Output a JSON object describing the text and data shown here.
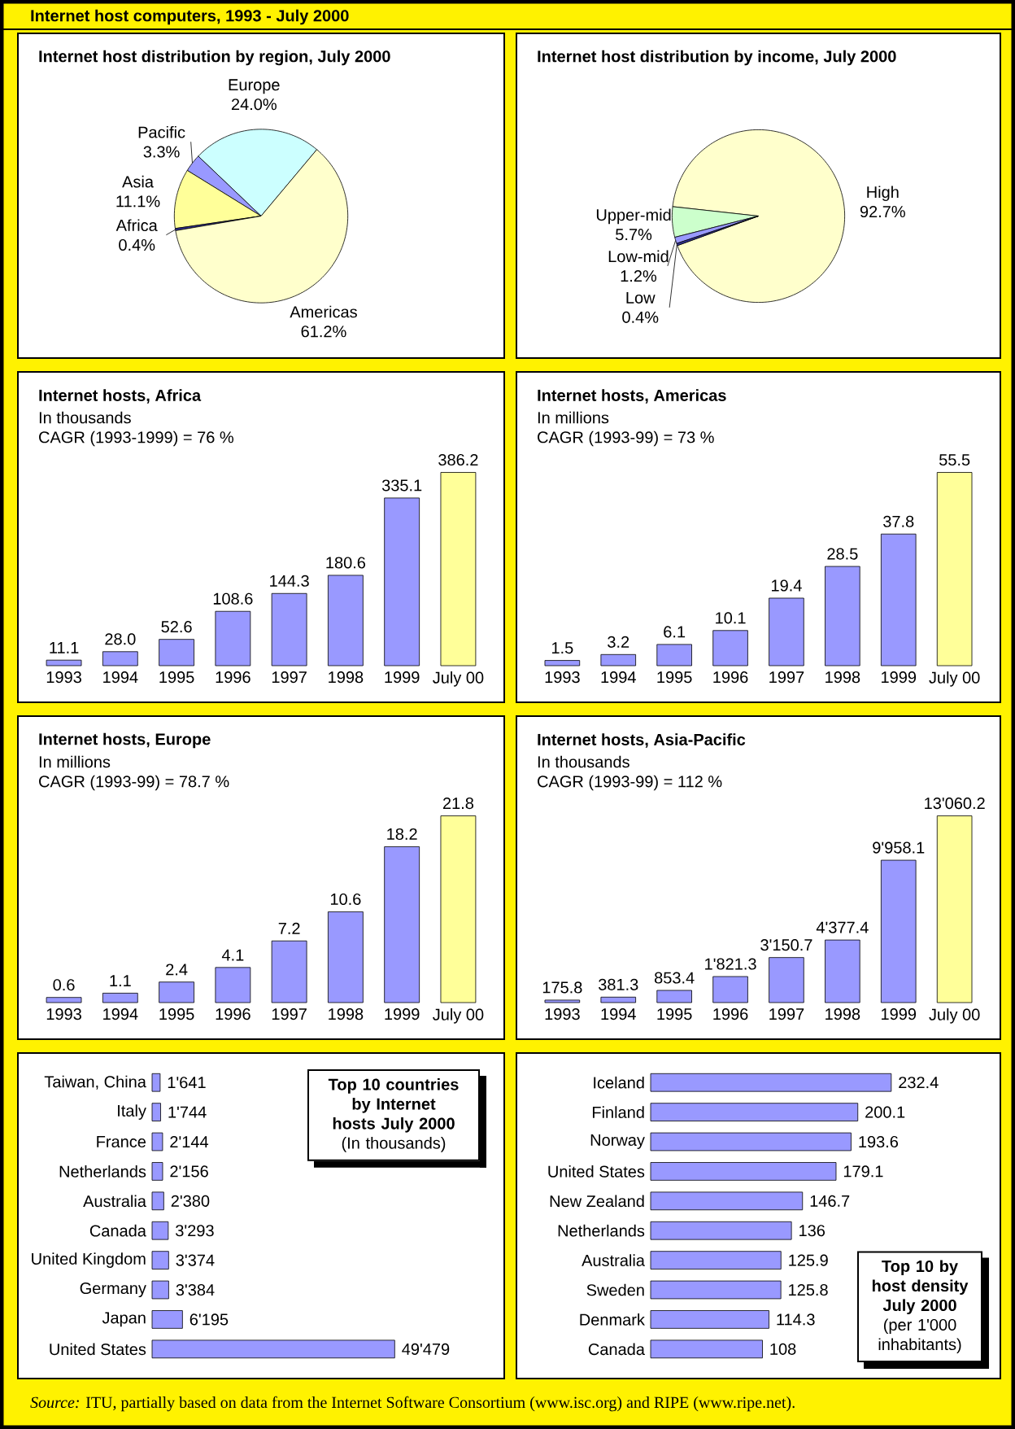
{
  "chart_data": [
    {
      "type": "pie",
      "title": "Internet host distribution by region, July 2000",
      "categories": [
        "Europe",
        "Pacific",
        "Asia",
        "Africa",
        "Americas"
      ],
      "values": [
        24.0,
        3.3,
        11.1,
        0.4,
        61.2
      ],
      "value_labels": [
        "24.0%",
        "3.3%",
        "11.1%",
        "0.4%",
        "61.2%"
      ],
      "colors": [
        "#ccffff",
        "#9999ff",
        "#ffff99",
        "#333399",
        "#ffffcc"
      ]
    },
    {
      "type": "pie",
      "title": "Internet host distribution by income, July 2000",
      "categories": [
        "High",
        "Upper-mid",
        "Low-mid",
        "Low"
      ],
      "values": [
        92.7,
        5.7,
        1.2,
        0.4
      ],
      "value_labels": [
        "92.7%",
        "5.7%",
        "1.2%",
        "0.4%"
      ],
      "colors": [
        "#ffffcc",
        "#ccffcc",
        "#9999ff",
        "#333399"
      ]
    },
    {
      "type": "bar",
      "title": "Internet hosts, Africa",
      "subtitle": "In thousands",
      "annotations": [
        "CAGR (1993-1999) =  76 %"
      ],
      "categories": [
        "1993",
        "1994",
        "1995",
        "1996",
        "1997",
        "1998",
        "1999",
        "July 00"
      ],
      "values": [
        11.1,
        28.0,
        52.6,
        108.6,
        144.3,
        180.6,
        335.1,
        386.2
      ],
      "value_labels": [
        "11.1",
        "28.0",
        "52.6",
        "108.6",
        "144.3",
        "180.6",
        "335.1",
        "386.2"
      ],
      "colors": [
        "#9999ff",
        "#9999ff",
        "#9999ff",
        "#9999ff",
        "#9999ff",
        "#9999ff",
        "#9999ff",
        "#ffff99"
      ]
    },
    {
      "type": "bar",
      "title": "Internet hosts, Americas",
      "subtitle": "In millions",
      "annotations": [
        "CAGR (1993-99) = 73 %"
      ],
      "categories": [
        "1993",
        "1994",
        "1995",
        "1996",
        "1997",
        "1998",
        "1999",
        "July 00"
      ],
      "values": [
        1.5,
        3.2,
        6.1,
        10.1,
        19.4,
        28.5,
        37.8,
        55.5
      ],
      "value_labels": [
        "1.5",
        "3.2",
        "6.1",
        "10.1",
        "19.4",
        "28.5",
        "37.8",
        "55.5"
      ],
      "colors": [
        "#9999ff",
        "#9999ff",
        "#9999ff",
        "#9999ff",
        "#9999ff",
        "#9999ff",
        "#9999ff",
        "#ffff99"
      ]
    },
    {
      "type": "bar",
      "title": "Internet hosts, Europe",
      "subtitle": "In millions",
      "annotations": [
        "CAGR (1993-99) = 78.7 %"
      ],
      "categories": [
        "1993",
        "1994",
        "1995",
        "1996",
        "1997",
        "1998",
        "1999",
        "July 00"
      ],
      "values": [
        0.6,
        1.1,
        2.4,
        4.1,
        7.2,
        10.6,
        18.2,
        21.8
      ],
      "value_labels": [
        "0.6",
        "1.1",
        "2.4",
        "4.1",
        "7.2",
        "10.6",
        "18.2",
        "21.8"
      ],
      "colors": [
        "#9999ff",
        "#9999ff",
        "#9999ff",
        "#9999ff",
        "#9999ff",
        "#9999ff",
        "#9999ff",
        "#ffff99"
      ]
    },
    {
      "type": "bar",
      "title": "Internet hosts, Asia-Pacific",
      "subtitle": "In thousands",
      "annotations": [
        "CAGR (1993-99) = 112 %"
      ],
      "categories": [
        "1993",
        "1994",
        "1995",
        "1996",
        "1997",
        "1998",
        "1999",
        "July 00"
      ],
      "values": [
        175.8,
        381.3,
        853.4,
        1821.3,
        3150.7,
        4377.4,
        9958.1,
        13060.2
      ],
      "value_labels": [
        "175.8",
        "381.3",
        "853.4",
        "1'821.3",
        "3'150.7",
        "4'377.4",
        "9'958.1",
        "13'060.2"
      ],
      "colors": [
        "#9999ff",
        "#9999ff",
        "#9999ff",
        "#9999ff",
        "#9999ff",
        "#9999ff",
        "#9999ff",
        "#ffff99"
      ]
    },
    {
      "type": "bar",
      "orientation": "horizontal",
      "title": "Top 10 countries by Internet hosts July 2000",
      "subtitle": "(In thousands)",
      "categories": [
        "Taiwan, China",
        "Italy",
        "France",
        "Netherlands",
        "Australia",
        "Canada",
        "United Kingdom",
        "Germany",
        "Japan",
        "United States"
      ],
      "values": [
        1641,
        1744,
        2144,
        2156,
        2380,
        3293,
        3374,
        3384,
        6195,
        49479
      ],
      "value_labels": [
        "1'641",
        "1'744",
        "2'144",
        "2'156",
        "2'380",
        "3'293",
        "3'374",
        "3'384",
        "6'195",
        "49'479"
      ],
      "color": "#9999ff"
    },
    {
      "type": "bar",
      "orientation": "horizontal",
      "title": "Top 10 by host density July 2000",
      "subtitle": "(per 1'000 inhabitants)",
      "categories": [
        "Iceland",
        "Finland",
        "Norway",
        "United States",
        "New Zealand",
        "Netherlands",
        "Australia",
        "Sweden",
        "Denmark",
        "Canada"
      ],
      "values": [
        232.4,
        200.1,
        193.6,
        179.1,
        146.7,
        136,
        125.9,
        125.8,
        114.3,
        108
      ],
      "value_labels": [
        "232.4",
        "200.1",
        "193.6",
        "179.1",
        "146.7",
        "136",
        "125.9",
        "125.8",
        "114.3",
        "108"
      ],
      "color": "#9999ff"
    },
    {
      "type": "other",
      "title": "Internet host computers,  1993 - July 2000",
      "annotations": [
        "*Source:*  ITU, partially based on data from the Internet Software Consortium (www.isc.org) and RIPE (www.ripe.net)."
      ]
    }
  ]
}
